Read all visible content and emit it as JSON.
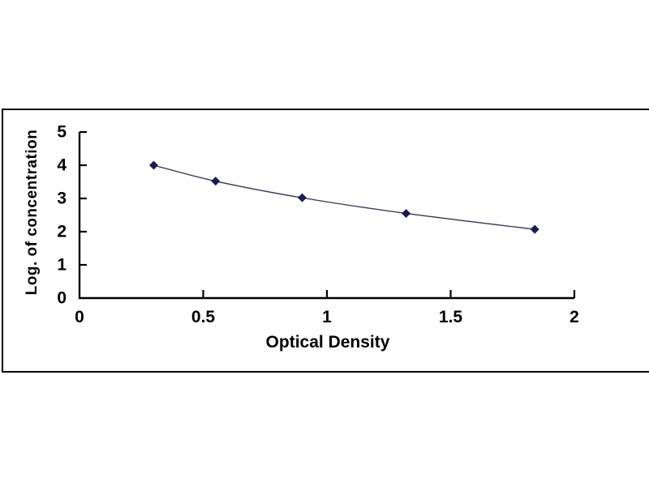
{
  "figure": {
    "background": "#ffffff",
    "frame_color": "#000000"
  },
  "chart_data": {
    "type": "line",
    "title": "",
    "xlabel": "Optical Density",
    "ylabel": "Log. of concentration",
    "x": [
      0.3,
      0.55,
      0.9,
      1.32,
      1.84
    ],
    "y": [
      4.0,
      3.52,
      3.02,
      2.55,
      2.07
    ],
    "xlim": [
      0,
      2
    ],
    "ylim": [
      0,
      5
    ],
    "x_ticks": [
      0,
      0.5,
      1,
      1.5,
      2
    ],
    "x_tick_labels": [
      "0",
      "0.5",
      "1",
      "1.5",
      "2"
    ],
    "y_ticks": [
      0,
      1,
      2,
      3,
      4,
      5
    ],
    "y_tick_labels": [
      "0",
      "1",
      "2",
      "3",
      "4",
      "5"
    ],
    "grid": false,
    "legend": null,
    "tick_style": "inside",
    "marker": "diamond",
    "marker_color": "#1c1b52",
    "line_color": "#34344e",
    "axis_color": "#000000",
    "text_color": "#000000"
  }
}
